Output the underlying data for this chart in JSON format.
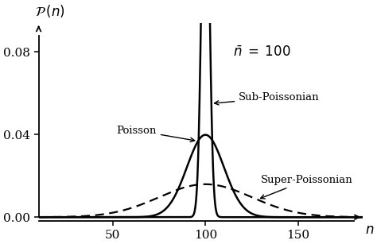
{
  "mean": 100,
  "n_min": 10,
  "n_max": 185,
  "ylim": [
    -0.002,
    0.094
  ],
  "yticks": [
    0.0,
    0.04,
    0.08
  ],
  "xticks": [
    50,
    100,
    150
  ],
  "xlim": [
    10,
    185
  ],
  "sub_poisson_sigma": 2.0,
  "poisson_sigma": 10.0,
  "super_poisson_sigma": 25.0,
  "ylabel": "$\\mathcal{P}\\,(n)$",
  "xlabel": "$n$",
  "n_bar_label": "$\\bar{n}\\; =\\; 100$",
  "label_sub": "Sub-Poissonian",
  "label_poisson": "Poisson",
  "label_super": "Super-Poissonian",
  "bg_color": "#ffffff",
  "line_color": "#000000",
  "sub_lw": 1.8,
  "poi_lw": 1.8,
  "sup_lw": 1.6
}
